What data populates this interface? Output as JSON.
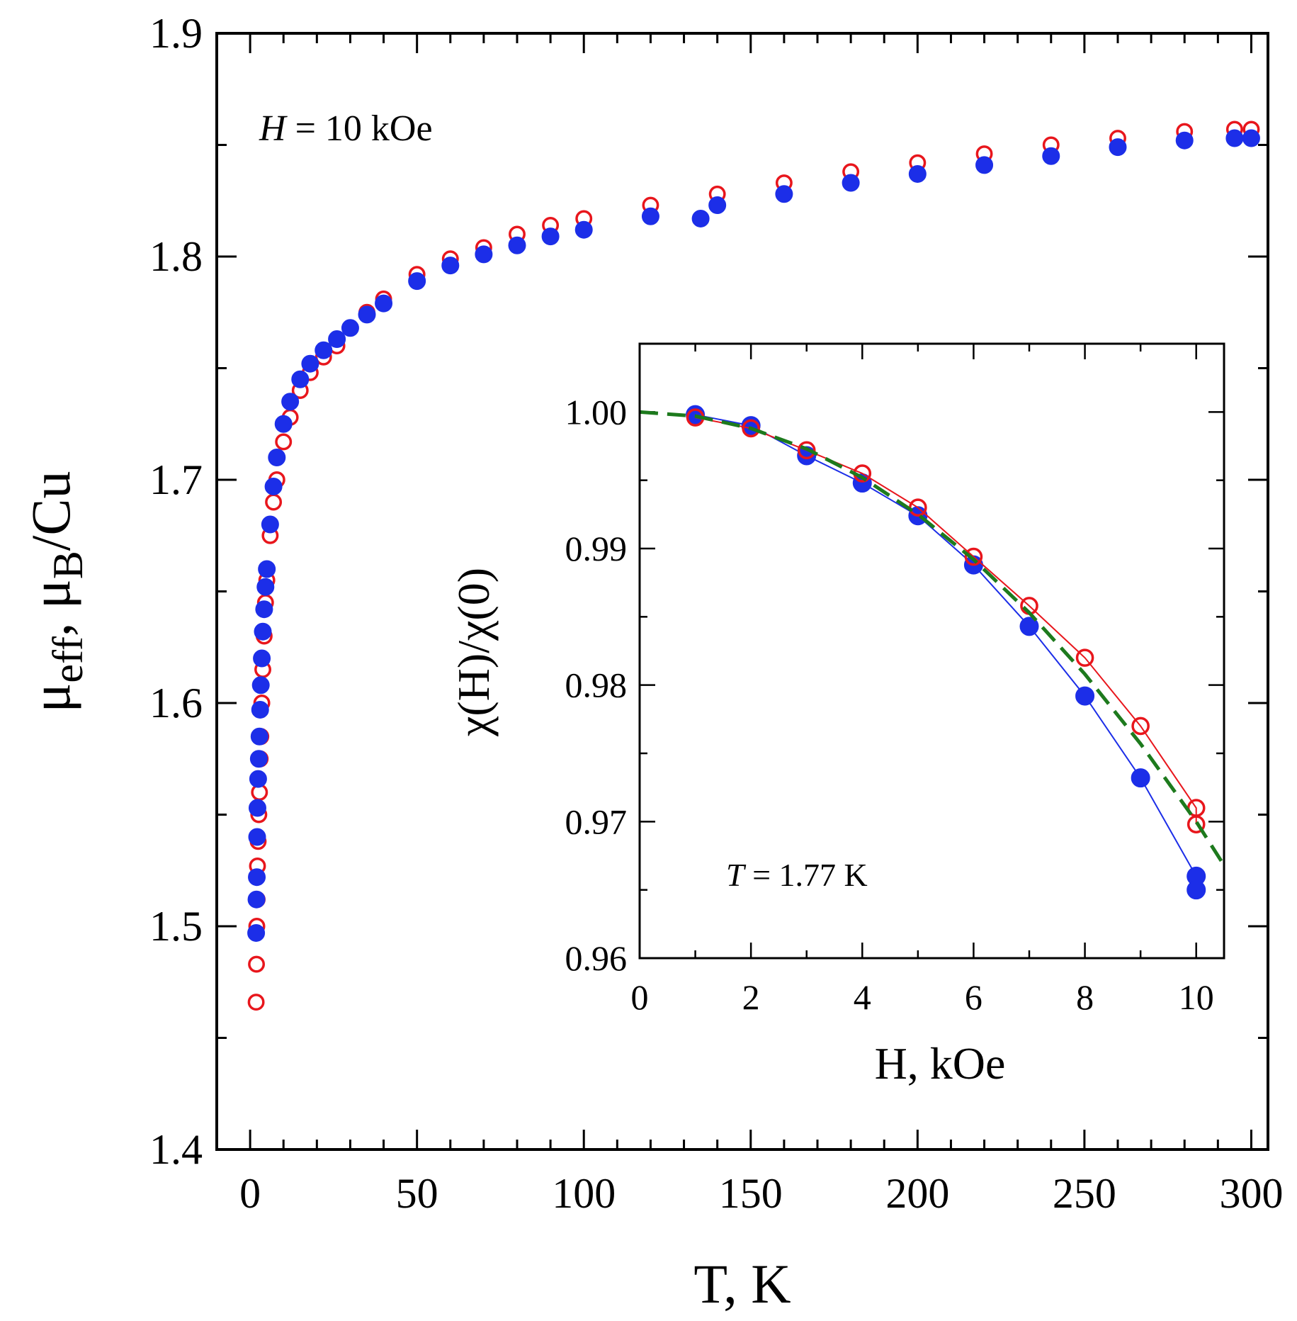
{
  "chart_data": [
    {
      "type": "scatter",
      "title": "",
      "xlabel": "T, K",
      "ylabel_parts": [
        "μ",
        "eff",
        ", μ",
        "B",
        "/Cu"
      ],
      "xlim": [
        -10,
        305
      ],
      "ylim": [
        1.4,
        1.9
      ],
      "x_ticks": [
        0,
        50,
        100,
        150,
        200,
        250,
        300
      ],
      "x_tick_labels": [
        "0",
        "50",
        "100",
        "150",
        "200",
        "250",
        "300"
      ],
      "x_minor_step": 10,
      "y_ticks": [
        1.4,
        1.5,
        1.6,
        1.7,
        1.8,
        1.9
      ],
      "y_tick_labels": [
        "1.4",
        "1.5",
        "1.6",
        "1.7",
        "1.8",
        "1.9"
      ],
      "y_minor_step": 0.05,
      "annotation_parts": [
        "H",
        " = 10  kOe"
      ],
      "series": [
        {
          "name": "open red circles",
          "color": "#e8161c",
          "marker": "open-circle",
          "x": [
            1.8,
            1.9,
            2.0,
            2.1,
            2.2,
            2.4,
            2.6,
            2.8,
            3.0,
            3.2,
            3.5,
            3.8,
            4.2,
            4.6,
            5.0,
            6,
            7,
            8,
            10,
            12,
            15,
            18,
            22,
            26,
            30,
            35,
            40,
            50,
            60,
            70,
            80,
            90,
            100,
            120,
            140,
            160,
            180,
            200,
            220,
            240,
            260,
            280,
            295,
            300
          ],
          "y": [
            1.466,
            1.483,
            1.5,
            1.512,
            1.527,
            1.538,
            1.55,
            1.56,
            1.575,
            1.585,
            1.6,
            1.615,
            1.63,
            1.645,
            1.655,
            1.675,
            1.69,
            1.7,
            1.717,
            1.728,
            1.74,
            1.748,
            1.755,
            1.76,
            1.768,
            1.775,
            1.781,
            1.792,
            1.799,
            1.804,
            1.81,
            1.814,
            1.817,
            1.823,
            1.828,
            1.833,
            1.838,
            1.842,
            1.846,
            1.85,
            1.853,
            1.856,
            1.857,
            1.857
          ]
        },
        {
          "name": "filled blue circles",
          "color": "#1c2ee8",
          "marker": "filled-circle",
          "x": [
            1.8,
            1.9,
            2.0,
            2.1,
            2.2,
            2.4,
            2.6,
            2.8,
            3.0,
            3.2,
            3.5,
            3.8,
            4.2,
            4.6,
            5.0,
            6,
            7,
            8,
            10,
            12,
            15,
            18,
            22,
            26,
            30,
            35,
            40,
            50,
            60,
            70,
            80,
            90,
            100,
            120,
            135,
            140,
            160,
            180,
            200,
            220,
            240,
            260,
            280,
            295,
            300
          ],
          "y": [
            1.497,
            1.512,
            1.522,
            1.54,
            1.553,
            1.566,
            1.575,
            1.585,
            1.597,
            1.608,
            1.62,
            1.632,
            1.642,
            1.652,
            1.66,
            1.68,
            1.697,
            1.71,
            1.725,
            1.735,
            1.745,
            1.752,
            1.758,
            1.763,
            1.768,
            1.774,
            1.779,
            1.789,
            1.796,
            1.801,
            1.805,
            1.809,
            1.812,
            1.818,
            1.817,
            1.823,
            1.828,
            1.833,
            1.837,
            1.841,
            1.845,
            1.849,
            1.852,
            1.853,
            1.853
          ]
        }
      ]
    },
    {
      "type": "scatter",
      "title": "",
      "role": "inset",
      "xlabel": "H, kOe",
      "ylabel": "χ(H)/χ(0)",
      "xlim": [
        0,
        10.5
      ],
      "ylim": [
        0.96,
        1.005
      ],
      "x_ticks": [
        0,
        2,
        4,
        6,
        8,
        10
      ],
      "x_tick_labels": [
        "0",
        "2",
        "4",
        "6",
        "8",
        "10"
      ],
      "x_minor_step": 1,
      "y_ticks": [
        0.96,
        0.97,
        0.98,
        0.99,
        1.0
      ],
      "y_tick_labels": [
        "0.96",
        "0.97",
        "0.98",
        "0.99",
        "1.00"
      ],
      "y_minor_step": 0.005,
      "annotation_parts": [
        "T",
        " = 1.77 K"
      ],
      "series": [
        {
          "name": "filled blue circles",
          "color": "#1c2ee8",
          "marker": "filled-circle",
          "connected": true,
          "x": [
            1,
            2,
            3,
            4,
            5,
            6,
            7,
            8,
            9,
            10,
            10
          ],
          "y": [
            0.9998,
            0.999,
            0.9968,
            0.9948,
            0.9924,
            0.9888,
            0.9843,
            0.9792,
            0.9732,
            0.966,
            0.965
          ]
        },
        {
          "name": "open red circles",
          "color": "#e8161c",
          "marker": "open-circle",
          "connected": true,
          "x": [
            1,
            2,
            3,
            4,
            5,
            6,
            7,
            8,
            9,
            10,
            10
          ],
          "y": [
            0.9996,
            0.9988,
            0.9972,
            0.9955,
            0.993,
            0.9894,
            0.9858,
            0.982,
            0.977,
            0.971,
            0.9698
          ]
        },
        {
          "name": "dashed fit",
          "color": "#1d7a1d",
          "marker": "none",
          "line": "dashed",
          "x": [
            0,
            1,
            2,
            3,
            4,
            5,
            6,
            7,
            8,
            9,
            10,
            10.5
          ],
          "y": [
            1.0,
            0.9997,
            0.9988,
            0.9973,
            0.9952,
            0.9925,
            0.9892,
            0.9853,
            0.9808,
            0.9757,
            0.97,
            0.9668
          ]
        }
      ]
    }
  ]
}
